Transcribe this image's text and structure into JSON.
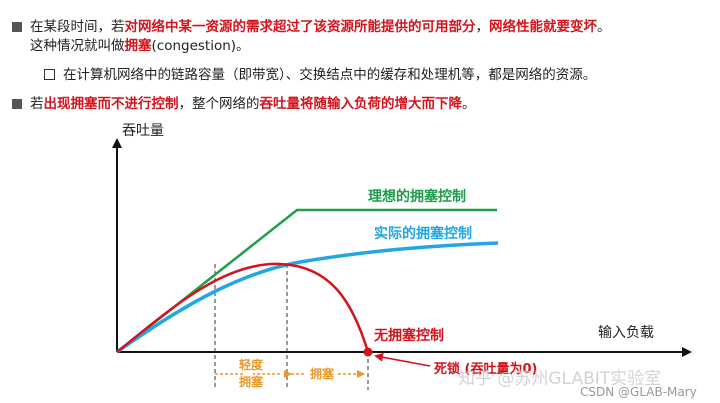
{
  "text": {
    "p1_a": "在某段时间，若",
    "p1_b": "对网络中某一资源的需求超过了该资源所能提供的可用部分",
    "p1_c": "，",
    "p1_d": "网络性能就要变坏",
    "p1_e": "。",
    "p1_line2_a": "这种情况就叫做",
    "p1_line2_b": "拥塞",
    "p1_line2_c": "(congestion)。",
    "p2": "在计算机网络中的链路容量（即带宽）、交换结点中的缓存和处理机等，都是网络的资源。",
    "p3_a": "若",
    "p3_b": "出现拥塞而不进行控制",
    "p3_c": "，整个网络的",
    "p3_d": "吞吐量将随输入负荷的增大而下降",
    "p3_e": "。"
  },
  "chart_data": {
    "type": "line",
    "ylabel": "吞吐量",
    "xlabel": "输入负载",
    "series": [
      {
        "name": "理想的拥塞控制",
        "color": "#1e9e4a"
      },
      {
        "name": "实际的拥塞控制",
        "color": "#22a7e0"
      },
      {
        "name": "无拥塞控制",
        "color": "#d4141c"
      }
    ],
    "regions": [
      {
        "label": "轻度\n拥塞",
        "label_line1": "轻度",
        "label_line2": "拥塞"
      },
      {
        "label": "拥塞"
      }
    ],
    "annotation": "死锁 (吞吐量为0)"
  },
  "watermark": {
    "line1": "知乎 @苏州GLABIT实验室",
    "line2": "CSDN @GLAB-Mary"
  }
}
